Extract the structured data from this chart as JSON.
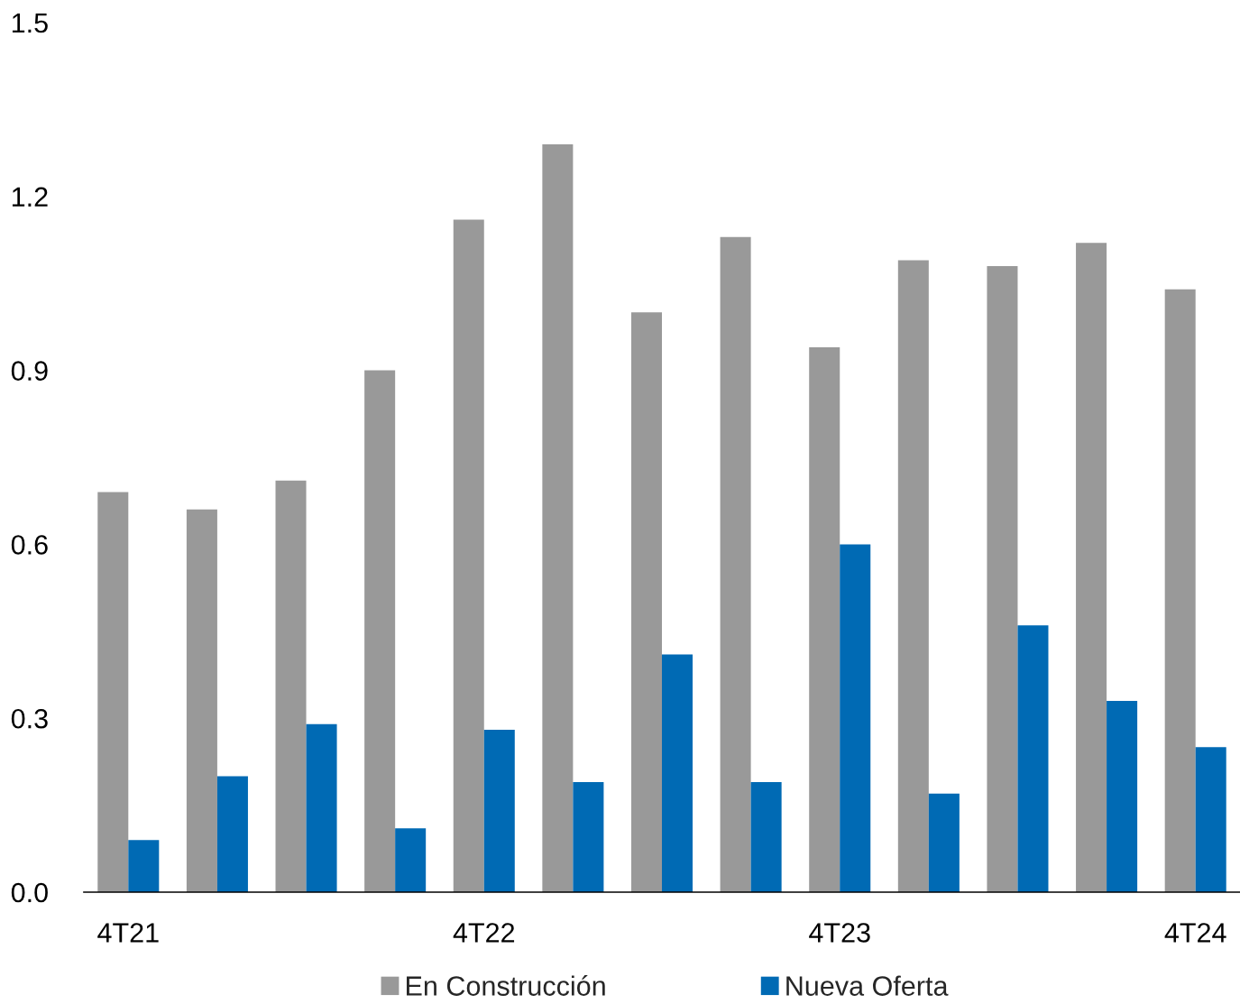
{
  "chart_data": {
    "type": "bar",
    "categories": [
      "4T21",
      null,
      null,
      null,
      "4T22",
      null,
      null,
      null,
      "4T23",
      null,
      null,
      null,
      "4T24"
    ],
    "series": [
      {
        "name": "En Construcción",
        "color": "#999999",
        "values": [
          0.69,
          0.66,
          0.71,
          0.9,
          1.16,
          1.29,
          1.0,
          1.13,
          0.94,
          1.09,
          1.08,
          1.12,
          1.04
        ]
      },
      {
        "name": "Nueva Oferta",
        "color": "#006ab4",
        "values": [
          0.09,
          0.2,
          0.29,
          0.11,
          0.28,
          0.19,
          0.41,
          0.19,
          0.6,
          0.17,
          0.46,
          0.33,
          0.25
        ]
      }
    ],
    "ylim": [
      0,
      1.5
    ],
    "yticks": [
      {
        "value": 0,
        "label": "0.0"
      },
      0.3,
      0.6,
      0.9,
      1.2,
      1.5
    ],
    "legend": "bottom"
  }
}
